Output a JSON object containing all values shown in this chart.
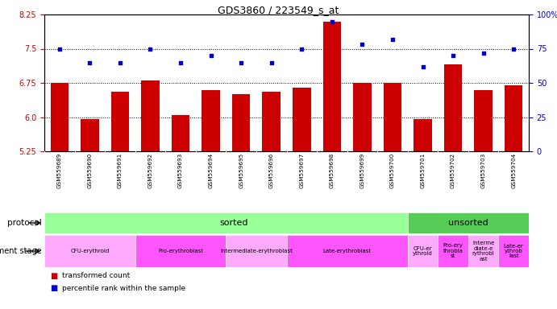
{
  "title": "GDS3860 / 223549_s_at",
  "samples": [
    "GSM559689",
    "GSM559690",
    "GSM559691",
    "GSM559692",
    "GSM559693",
    "GSM559694",
    "GSM559695",
    "GSM559696",
    "GSM559697",
    "GSM559698",
    "GSM559699",
    "GSM559700",
    "GSM559701",
    "GSM559702",
    "GSM559703",
    "GSM559704"
  ],
  "bar_values": [
    6.75,
    5.95,
    6.55,
    6.8,
    6.05,
    6.6,
    6.5,
    6.55,
    6.65,
    8.1,
    6.75,
    6.75,
    5.95,
    7.15,
    6.6,
    6.7
  ],
  "dot_values": [
    75,
    65,
    65,
    75,
    65,
    70,
    65,
    65,
    75,
    95,
    78,
    82,
    62,
    70,
    72,
    75
  ],
  "ylim": [
    5.25,
    8.25
  ],
  "y2lim": [
    0,
    100
  ],
  "yticks": [
    5.25,
    6.0,
    6.75,
    7.5,
    8.25
  ],
  "y2ticks": [
    0,
    25,
    50,
    75,
    100
  ],
  "bar_color": "#cc0000",
  "dot_color": "#0000cc",
  "protocol_sorted_color": "#99ff99",
  "protocol_unsorted_color": "#55cc55",
  "dev_stage_data": [
    {
      "label": "CFU-erythroid",
      "start": 0,
      "end": 3,
      "color": "#ffaaff"
    },
    {
      "label": "Pro-erythroblast",
      "start": 3,
      "end": 6,
      "color": "#ff55ff"
    },
    {
      "label": "Intermediate-erythroblast",
      "start": 6,
      "end": 8,
      "color": "#ffaaff"
    },
    {
      "label": "Late-erythroblast",
      "start": 8,
      "end": 12,
      "color": "#ff55ff"
    },
    {
      "label": "CFU-er\nythroid",
      "start": 12,
      "end": 13,
      "color": "#ffaaff"
    },
    {
      "label": "Pro-ery\nthrobla\nst",
      "start": 13,
      "end": 14,
      "color": "#ff55ff"
    },
    {
      "label": "Interme\ndiate-e\nrythrobl\nast",
      "start": 14,
      "end": 15,
      "color": "#ffaaff"
    },
    {
      "label": "Late-er\nythrob\nlast",
      "start": 15,
      "end": 16,
      "color": "#ff55ff"
    }
  ],
  "background_color": "#ffffff",
  "n_samples": 16,
  "n_sorted": 12
}
